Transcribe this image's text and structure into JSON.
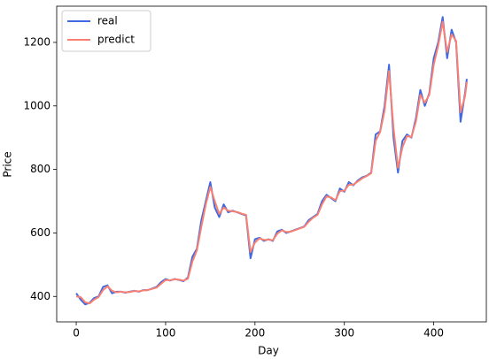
{
  "chart_data": {
    "type": "line",
    "xlabel": "Day",
    "ylabel": "Price",
    "x": [
      0,
      5,
      10,
      15,
      20,
      25,
      30,
      35,
      40,
      45,
      50,
      55,
      60,
      65,
      70,
      75,
      80,
      85,
      90,
      95,
      100,
      105,
      110,
      115,
      120,
      125,
      130,
      135,
      140,
      145,
      150,
      155,
      160,
      165,
      170,
      175,
      180,
      185,
      190,
      195,
      200,
      205,
      210,
      215,
      220,
      225,
      230,
      235,
      240,
      245,
      250,
      255,
      260,
      265,
      270,
      275,
      280,
      285,
      290,
      295,
      300,
      305,
      310,
      315,
      320,
      325,
      330,
      335,
      340,
      345,
      350,
      355,
      360,
      365,
      370,
      375,
      380,
      385,
      390,
      395,
      400,
      405,
      410,
      415,
      420,
      425,
      430,
      435,
      437
    ],
    "series": [
      {
        "name": "real",
        "color": "#4169e1",
        "values": [
          410,
          390,
          375,
          380,
          395,
          400,
          430,
          435,
          410,
          415,
          415,
          412,
          415,
          418,
          415,
          420,
          420,
          425,
          430,
          445,
          455,
          450,
          455,
          452,
          448,
          460,
          525,
          550,
          640,
          700,
          760,
          680,
          650,
          690,
          665,
          670,
          665,
          660,
          655,
          520,
          580,
          585,
          575,
          580,
          575,
          605,
          610,
          600,
          605,
          610,
          615,
          620,
          640,
          650,
          660,
          700,
          720,
          710,
          700,
          740,
          730,
          760,
          750,
          765,
          775,
          780,
          790,
          910,
          920,
          1000,
          1130,
          900,
          790,
          890,
          910,
          900,
          960,
          1050,
          1000,
          1040,
          1150,
          1200,
          1280,
          1150,
          1240,
          1200,
          950,
          1040,
          1085
        ]
      },
      {
        "name": "predict",
        "color": "#fa8072",
        "values": [
          400,
          398,
          382,
          378,
          390,
          398,
          420,
          432,
          418,
          413,
          415,
          413,
          414,
          417,
          416,
          419,
          420,
          424,
          428,
          440,
          452,
          451,
          454,
          453,
          450,
          456,
          510,
          545,
          620,
          690,
          745,
          700,
          660,
          680,
          670,
          668,
          666,
          661,
          657,
          540,
          570,
          583,
          578,
          579,
          577,
          598,
          608,
          603,
          604,
          609,
          614,
          619,
          635,
          648,
          657,
          690,
          715,
          712,
          703,
          732,
          733,
          752,
          752,
          762,
          772,
          779,
          788,
          890,
          918,
          985,
          1110,
          930,
          805,
          870,
          905,
          902,
          950,
          1035,
          1010,
          1035,
          1130,
          1190,
          1265,
          1170,
          1225,
          1205,
          980,
          1030,
          1075
        ]
      }
    ],
    "xlim": [
      -21.85,
      458.85
    ],
    "xticks": [
      0,
      100,
      200,
      300,
      400
    ],
    "ylim": [
      320,
      1314
    ],
    "yticks": [
      400,
      600,
      800,
      1000,
      1200
    ],
    "legend": "upper left"
  }
}
